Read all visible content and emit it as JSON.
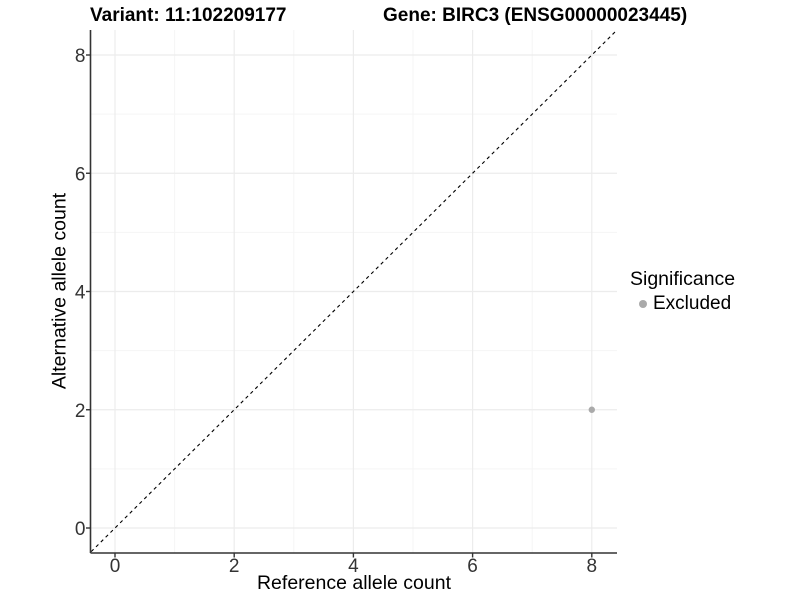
{
  "chart_data": {
    "type": "scatter",
    "title_left": "Variant: 11:102209177",
    "title_right": "Gene: BIRC3 (ENSG00000023445)",
    "xlabel": "Reference allele count",
    "ylabel": "Alternative allele count",
    "xlim": [
      -0.4,
      8.4
    ],
    "ylim": [
      -0.4,
      8.4
    ],
    "xticks": [
      0,
      2,
      4,
      6,
      8
    ],
    "yticks": [
      0,
      2,
      4,
      6,
      8
    ],
    "x_minor_ticks": [
      1,
      3,
      5,
      7
    ],
    "y_minor_ticks": [
      1,
      3,
      5,
      7
    ],
    "grid": "major-even minor-odd, light gray on white",
    "identity_line": {
      "equation": "y = x",
      "style": "dashed",
      "color": "#000000"
    },
    "points": [
      {
        "x": 8,
        "y": 2,
        "significance": "Excluded"
      }
    ],
    "legend": {
      "title": "Significance",
      "position": "right",
      "items": [
        {
          "label": "Excluded",
          "marker": "circle",
          "color": "#aaaaaa"
        }
      ]
    }
  },
  "colors": {
    "background": "#ffffff",
    "axis_line": "#333333",
    "tick_mark": "#333333",
    "tick_label": "#333333",
    "grid_major": "#ececec",
    "grid_minor": "#f5f5f5",
    "identity_line": "#000000",
    "point": "#aaaaaa"
  }
}
